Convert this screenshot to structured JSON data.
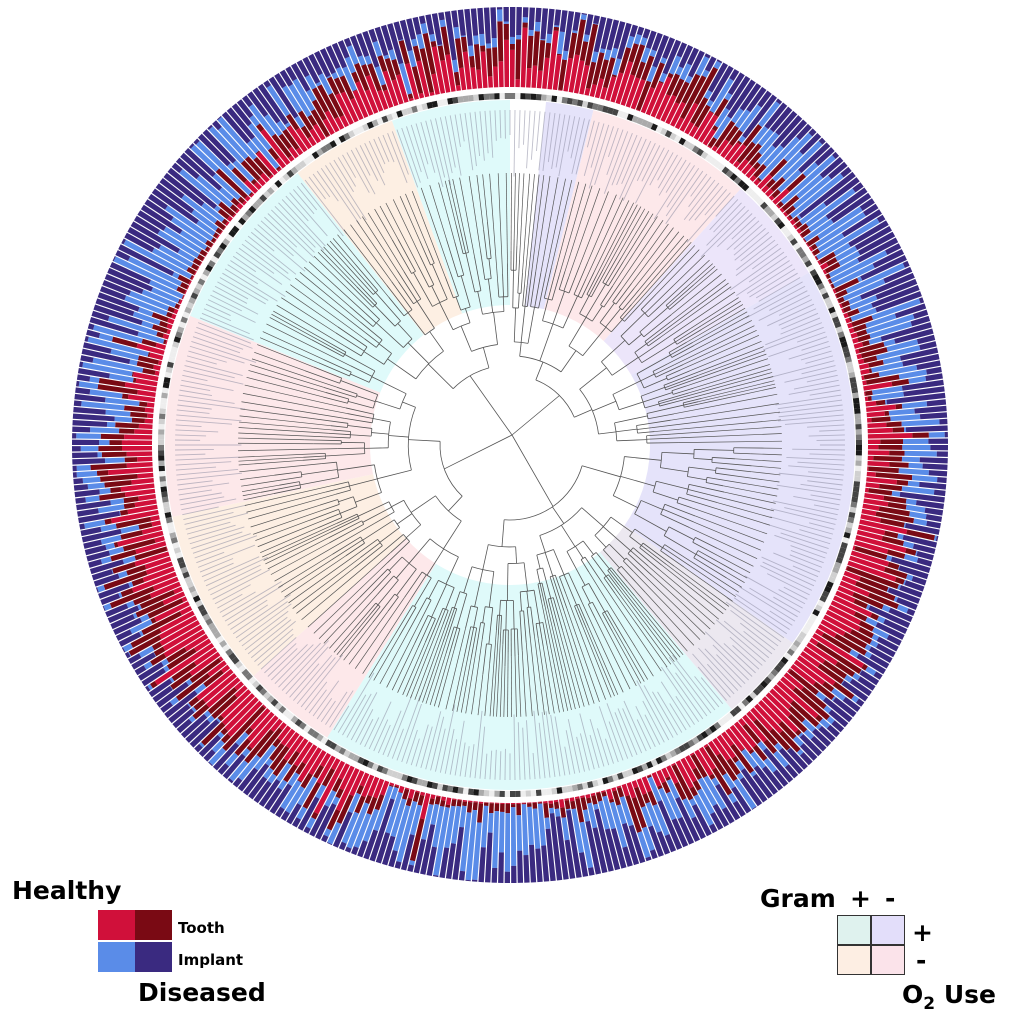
{
  "legend_sample": {
    "title_top": "Healthy",
    "title_bottom": "Diseased",
    "row_labels": [
      "Tooth",
      "Implant"
    ],
    "colors": {
      "healthy_tooth": "#d0103a",
      "diseased_tooth": "#7a0a14",
      "healthy_implant": "#5a8ce8",
      "diseased_implant": "#3a2a80"
    }
  },
  "legend_gram": {
    "title": "Gram",
    "col_labels": [
      "+",
      "-"
    ],
    "row_labels": [
      "+",
      "-"
    ],
    "o2_prefix": "O",
    "o2_sub": "2",
    "o2_suffix": " Use",
    "colors": {
      "gram_pos_o2_pos": "#dff2ee",
      "gram_neg_o2_pos": "#e3defa",
      "gram_pos_o2_neg": "#fdeee3",
      "gram_neg_o2_neg": "#fbe3ea"
    }
  },
  "tree_colors": {
    "branch": "#555555",
    "ring_sample": [
      "#d0103a",
      "#7a0a14",
      "#5a8ce8",
      "#3a2a80"
    ],
    "clade_sectors": [
      {
        "start_deg": 140,
        "end_deg": 212,
        "color": "#dffafa"
      },
      {
        "start_deg": 212,
        "end_deg": 228,
        "color": "#fde8ea"
      },
      {
        "start_deg": 228,
        "end_deg": 258,
        "color": "#fdefe3"
      },
      {
        "start_deg": 258,
        "end_deg": 292,
        "color": "#fde8ea"
      },
      {
        "start_deg": 292,
        "end_deg": 322,
        "color": "#dffafa"
      },
      {
        "start_deg": 322,
        "end_deg": 340,
        "color": "#fdefe3"
      },
      {
        "start_deg": 340,
        "end_deg": 360,
        "color": "#dffafa"
      },
      {
        "start_deg": 0,
        "end_deg": 6,
        "color": "#ffffff"
      },
      {
        "start_deg": 6,
        "end_deg": 14,
        "color": "#e5e3fa"
      },
      {
        "start_deg": 14,
        "end_deg": 42,
        "color": "#fde8ea"
      },
      {
        "start_deg": 42,
        "end_deg": 60,
        "color": "#ece5fa"
      },
      {
        "start_deg": 60,
        "end_deg": 125,
        "color": "#e5e3fa"
      },
      {
        "start_deg": 125,
        "end_deg": 140,
        "color": "#ece8f0"
      }
    ]
  }
}
